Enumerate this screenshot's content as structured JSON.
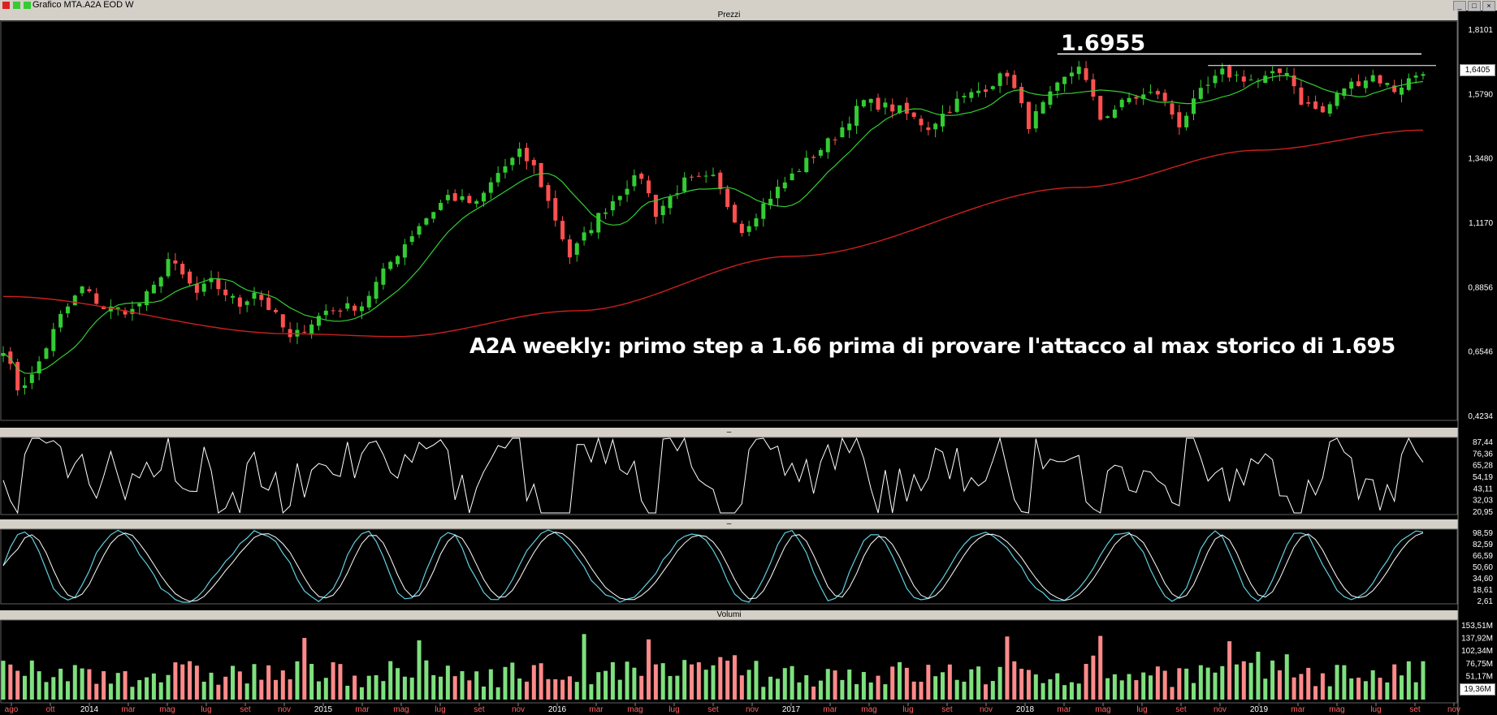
{
  "window": {
    "title": "Grafico MTA.A2A EOD W"
  },
  "panels": {
    "price_title": "Prezzi",
    "rsi_title": "–",
    "stoch_title": "–",
    "volume_title": "Volumi"
  },
  "annotation": "A2A weekly: primo step a 1.66 prima di provare l'attacco al max storico di 1.695",
  "max_label": "1.6955",
  "last_price_label": "1,6405",
  "last_volume_label": "19,36M",
  "colors": {
    "up": "#33cc33",
    "down": "#ff5050",
    "ma_short": "#33cc33",
    "ma_long": "#cc1f1f",
    "oscillator": "#ffffff",
    "stoch_k": "#5fd0e0",
    "stoch_d": "#ffffff"
  },
  "chart_data": [
    {
      "type": "candlestick",
      "title": "Prezzi",
      "y_ticks": [
        "1,8101",
        "1,5790",
        "1,3480",
        "1,1170",
        "0,8856",
        "0,6546",
        "0,4234"
      ],
      "y_tick_values": [
        1.8101,
        1.579,
        1.348,
        1.117,
        0.8856,
        0.6546,
        0.4234
      ],
      "ylim": [
        0.4234,
        1.8101
      ],
      "x_tick_labels": [
        "ago",
        "ott",
        "2014",
        "mar",
        "mag",
        "lug",
        "set",
        "nov",
        "2015",
        "mar",
        "mag",
        "lug",
        "set",
        "nov",
        "2016",
        "mar",
        "mag",
        "lug",
        "set",
        "nov",
        "2017",
        "mar",
        "mag",
        "lug",
        "set",
        "nov",
        "2018",
        "mar",
        "mag",
        "lug",
        "set",
        "nov",
        "2019",
        "mar",
        "mag",
        "lug",
        "set",
        "nov"
      ],
      "close_anchors": [
        {
          "x": 0,
          "close": 0.67
        },
        {
          "x": 2,
          "close": 0.53
        },
        {
          "x": 4,
          "close": 0.57
        },
        {
          "x": 8,
          "close": 0.78
        },
        {
          "x": 11,
          "close": 0.88
        },
        {
          "x": 14,
          "close": 0.81
        },
        {
          "x": 18,
          "close": 0.8
        },
        {
          "x": 21,
          "close": 0.88
        },
        {
          "x": 23,
          "close": 0.98
        },
        {
          "x": 27,
          "close": 0.86
        },
        {
          "x": 29,
          "close": 0.9
        },
        {
          "x": 33,
          "close": 0.82
        },
        {
          "x": 35,
          "close": 0.87
        },
        {
          "x": 38,
          "close": 0.78
        },
        {
          "x": 40,
          "close": 0.7
        },
        {
          "x": 45,
          "close": 0.8
        },
        {
          "x": 50,
          "close": 0.82
        },
        {
          "x": 54,
          "close": 0.97
        },
        {
          "x": 58,
          "close": 1.1
        },
        {
          "x": 62,
          "close": 1.2
        },
        {
          "x": 66,
          "close": 1.17
        },
        {
          "x": 69,
          "close": 1.28
        },
        {
          "x": 72,
          "close": 1.35
        },
        {
          "x": 74,
          "close": 1.3
        },
        {
          "x": 77,
          "close": 1.12
        },
        {
          "x": 79,
          "close": 0.99
        },
        {
          "x": 83,
          "close": 1.13
        },
        {
          "x": 87,
          "close": 1.24
        },
        {
          "x": 89,
          "close": 1.27
        },
        {
          "x": 91,
          "close": 1.14
        },
        {
          "x": 95,
          "close": 1.25
        },
        {
          "x": 99,
          "close": 1.26
        },
        {
          "x": 103,
          "close": 1.08
        },
        {
          "x": 107,
          "close": 1.2
        },
        {
          "x": 112,
          "close": 1.32
        },
        {
          "x": 116,
          "close": 1.41
        },
        {
          "x": 120,
          "close": 1.53
        },
        {
          "x": 125,
          "close": 1.5
        },
        {
          "x": 129,
          "close": 1.44
        },
        {
          "x": 133,
          "close": 1.53
        },
        {
          "x": 137,
          "close": 1.58
        },
        {
          "x": 140,
          "close": 1.63
        },
        {
          "x": 143,
          "close": 1.45
        },
        {
          "x": 147,
          "close": 1.58
        },
        {
          "x": 150,
          "close": 1.66
        },
        {
          "x": 153,
          "close": 1.47
        },
        {
          "x": 157,
          "close": 1.54
        },
        {
          "x": 161,
          "close": 1.56
        },
        {
          "x": 164,
          "close": 1.45
        },
        {
          "x": 167,
          "close": 1.56
        },
        {
          "x": 170,
          "close": 1.63
        },
        {
          "x": 175,
          "close": 1.6
        },
        {
          "x": 179,
          "close": 1.64
        },
        {
          "x": 181,
          "close": 1.53
        },
        {
          "x": 184,
          "close": 1.49
        },
        {
          "x": 187,
          "close": 1.58
        },
        {
          "x": 191,
          "close": 1.62
        },
        {
          "x": 194,
          "close": 1.57
        },
        {
          "x": 198,
          "close": 1.64
        }
      ],
      "horizontal_lines": [
        {
          "label": "1.6955",
          "value": 1.6955
        },
        {
          "value": 1.655
        }
      ],
      "moving_average_long_anchors": [
        {
          "x": 0,
          "value": 0.85
        },
        {
          "x": 40,
          "value": 0.72
        },
        {
          "x": 55,
          "value": 0.71
        },
        {
          "x": 80,
          "value": 0.8
        },
        {
          "x": 110,
          "value": 0.99
        },
        {
          "x": 150,
          "value": 1.23
        },
        {
          "x": 175,
          "value": 1.36
        },
        {
          "x": 198,
          "value": 1.43
        }
      ]
    },
    {
      "type": "line",
      "name": "oscillator",
      "y_ticks": [
        "87,44",
        "76,36",
        "65,28",
        "54,19",
        "43,11",
        "32,03",
        "20,95"
      ],
      "ylim": [
        20.95,
        87.44
      ]
    },
    {
      "type": "line",
      "name": "stochastic",
      "y_ticks": [
        "98,59",
        "82,59",
        "66,59",
        "50,60",
        "34,60",
        "18,61",
        "2,61"
      ],
      "ylim": [
        2.61,
        98.59
      ]
    },
    {
      "type": "bar",
      "title": "Volumi",
      "y_ticks": [
        "153,51M",
        "137,92M",
        "102,34M",
        "76,75M",
        "51,17M",
        "19,36M"
      ],
      "ylim": [
        0,
        160
      ]
    }
  ]
}
